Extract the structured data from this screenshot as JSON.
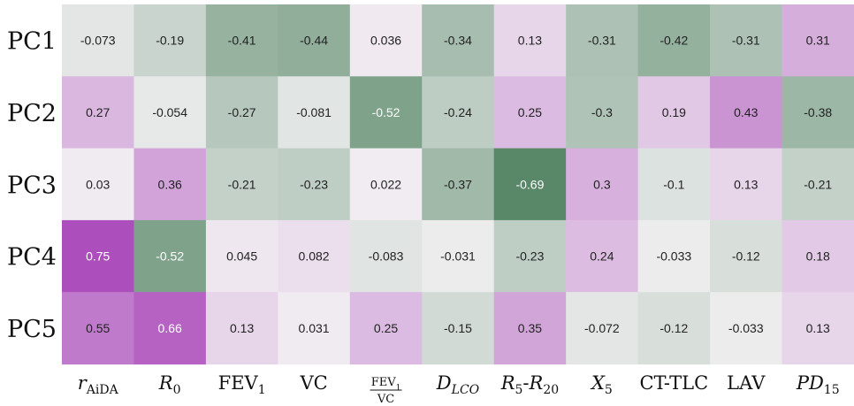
{
  "chart_data": {
    "type": "heatmap",
    "rows": [
      "PC1",
      "PC2",
      "PC3",
      "PC4",
      "PC5"
    ],
    "columns": [
      {
        "id": "raida",
        "parts": [
          {
            "t": "r",
            "i": true
          },
          {
            "t": "AiDA",
            "sub": true
          }
        ]
      },
      {
        "id": "r0",
        "parts": [
          {
            "t": "R",
            "i": true
          },
          {
            "t": "0",
            "sub": true
          }
        ]
      },
      {
        "id": "fev1",
        "parts": [
          {
            "t": "FEV"
          },
          {
            "t": "1",
            "sub": true
          }
        ]
      },
      {
        "id": "vc",
        "parts": [
          {
            "t": "VC"
          }
        ]
      },
      {
        "id": "fev1-vc",
        "fraction": {
          "num": [
            {
              "t": "FEV"
            },
            {
              "t": "1",
              "sub": true
            }
          ],
          "den": [
            {
              "t": "VC"
            }
          ]
        }
      },
      {
        "id": "dlco",
        "parts": [
          {
            "t": "D",
            "i": true
          },
          {
            "t": "LCO",
            "i": true,
            "sub": true
          }
        ]
      },
      {
        "id": "r5-r20",
        "parts": [
          {
            "t": "R",
            "i": true
          },
          {
            "t": "5",
            "sub": true
          },
          {
            "t": "-"
          },
          {
            "t": "R",
            "i": true
          },
          {
            "t": "20",
            "sub": true
          }
        ]
      },
      {
        "id": "x5",
        "parts": [
          {
            "t": "X",
            "i": true
          },
          {
            "t": "5",
            "sub": true
          }
        ]
      },
      {
        "id": "ct-tlc",
        "parts": [
          {
            "t": "CT-TLC"
          }
        ]
      },
      {
        "id": "lav",
        "parts": [
          {
            "t": "LAV"
          }
        ]
      },
      {
        "id": "pd15",
        "parts": [
          {
            "t": "PD",
            "i": true
          },
          {
            "t": "15",
            "sub": true
          }
        ]
      }
    ],
    "values": [
      [
        -0.073,
        -0.19,
        -0.41,
        -0.44,
        0.036,
        -0.34,
        0.13,
        -0.31,
        -0.42,
        -0.31,
        0.31
      ],
      [
        0.27,
        -0.054,
        -0.27,
        -0.081,
        -0.52,
        -0.24,
        0.25,
        -0.3,
        0.19,
        0.43,
        -0.38
      ],
      [
        0.03,
        0.36,
        -0.21,
        -0.23,
        0.022,
        -0.37,
        -0.69,
        0.3,
        -0.1,
        0.13,
        -0.21
      ],
      [
        0.75,
        -0.52,
        0.045,
        0.082,
        -0.083,
        -0.031,
        -0.23,
        0.24,
        -0.033,
        -0.12,
        0.18
      ],
      [
        0.55,
        0.66,
        0.13,
        0.031,
        0.25,
        -0.15,
        0.35,
        -0.072,
        -0.12,
        -0.033,
        0.13
      ]
    ],
    "vmin": -0.75,
    "vmax": 0.75,
    "colormap": {
      "negative": "#4a7f5c",
      "neutral": "#f3f1f3",
      "positive": "#ac4fbc"
    }
  }
}
